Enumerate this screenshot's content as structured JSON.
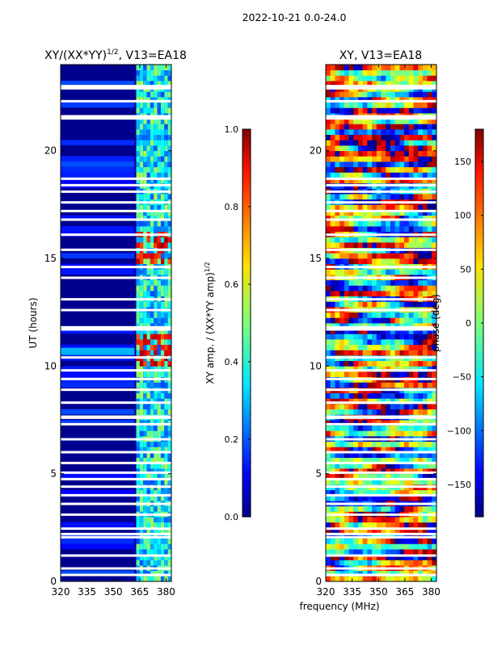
{
  "figure": {
    "suptitle": "2022-10-21 0.0-24.0",
    "xlabel": "frequency (MHz)"
  },
  "chart_data": [
    {
      "type": "heatmap",
      "title_main": "XY/(XX*YY)",
      "title_exp": "1/2",
      "title_tail": ", V13=EA18",
      "ylabel": "UT (hours)",
      "xlabel": "frequency (MHz)",
      "x_ticks": [
        "320",
        "335",
        "350",
        "365",
        "380"
      ],
      "x_tick_values": [
        320,
        335,
        350,
        365,
        380
      ],
      "y_ticks": [
        "0",
        "5",
        "10",
        "15",
        "20"
      ],
      "y_tick_values": [
        0,
        5,
        10,
        15,
        20
      ],
      "xlim": [
        320,
        383
      ],
      "ylim": [
        0,
        24
      ],
      "colormap": "jet",
      "colorbar": {
        "label_main": "XY amp. / (XX*YY amp)",
        "label_exp": "1/2",
        "ticks": [
          "0.0",
          "0.2",
          "0.4",
          "0.6",
          "0.8",
          "1.0"
        ],
        "tick_values": [
          0.0,
          0.2,
          0.4,
          0.6,
          0.8,
          1.0
        ],
        "range": [
          0.0,
          1.0
        ]
      },
      "flagged_hours": [
        0.3,
        0.6,
        1.2,
        2.05,
        2.2,
        2.45,
        3.1,
        3.6,
        4.0,
        4.4,
        4.75,
        5.05,
        5.5,
        6.0,
        6.6,
        7.3,
        7.6,
        7.65,
        8.3,
        8.9,
        9.4,
        9.8,
        10.4,
        11.7,
        11.8,
        12.6,
        13.1,
        14.1,
        14.6,
        15.4,
        16.1,
        16.8,
        17.2,
        17.6,
        18.1,
        18.4,
        18.7,
        21.5,
        21.6,
        22.3,
        22.9,
        23.0
      ],
      "hot_rfi_hours": [
        10.1,
        10.4,
        10.7,
        11.0,
        11.3,
        15.0,
        15.5,
        16.0
      ]
    },
    {
      "type": "heatmap",
      "title_main": "XY, V13=EA18",
      "ylabel": "",
      "xlabel": "frequency (MHz)",
      "x_ticks": [
        "320",
        "335",
        "350",
        "365",
        "380"
      ],
      "x_tick_values": [
        320,
        335,
        350,
        365,
        380
      ],
      "y_ticks": [
        "0",
        "5",
        "10",
        "15",
        "20"
      ],
      "y_tick_values": [
        0,
        5,
        10,
        15,
        20
      ],
      "xlim": [
        320,
        383
      ],
      "ylim": [
        0,
        24
      ],
      "colormap": "jet",
      "colorbar": {
        "label_main": "phase (deg)",
        "ticks": [
          "−150",
          "−100",
          "−50",
          "0",
          "50",
          "100",
          "150"
        ],
        "tick_values": [
          -150,
          -100,
          -50,
          0,
          50,
          100,
          150
        ],
        "range": [
          -180,
          180
        ]
      },
      "flagged_hours": [
        0.3,
        0.6,
        1.2,
        2.05,
        2.2,
        2.45,
        3.1,
        3.6,
        4.0,
        4.4,
        4.75,
        5.05,
        5.5,
        6.0,
        6.6,
        7.3,
        7.6,
        7.65,
        8.3,
        8.9,
        9.4,
        9.8,
        10.4,
        11.7,
        11.8,
        12.6,
        13.1,
        14.1,
        14.6,
        15.4,
        16.1,
        16.8,
        17.2,
        17.6,
        18.1,
        18.4,
        18.7,
        21.5,
        21.6,
        22.3,
        22.9,
        23.0
      ]
    }
  ]
}
